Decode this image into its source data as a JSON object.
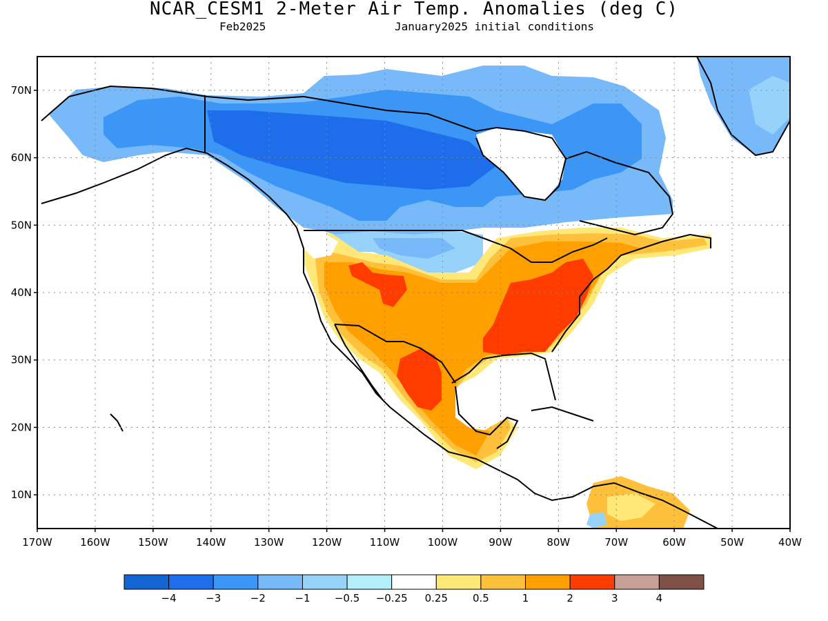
{
  "title": "NCAR_CESM1 2-Meter Air Temp. Anomalies (deg C)",
  "valid_month": "Feb2025",
  "init_text": "January2025 initial conditions",
  "map": {
    "lat_labels": [
      "70N",
      "60N",
      "50N",
      "40N",
      "30N",
      "20N",
      "10N"
    ],
    "lat_values": [
      70,
      60,
      50,
      40,
      30,
      20,
      10
    ],
    "lon_labels": [
      "170W",
      "160W",
      "150W",
      "140W",
      "130W",
      "120W",
      "110W",
      "100W",
      "90W",
      "80W",
      "70W",
      "60W",
      "50W",
      "40W"
    ],
    "lon_values": [
      -170,
      -160,
      -150,
      -140,
      -130,
      -120,
      -110,
      -100,
      -90,
      -80,
      -70,
      -60,
      -50,
      -40
    ],
    "lon_range": [
      -170,
      -40
    ],
    "lat_range": [
      5,
      75
    ],
    "grid": true
  },
  "colorbar": {
    "colors": [
      "#1464d2",
      "#1e6eeb",
      "#3c96f5",
      "#78b9fa",
      "#96d2fa",
      "#b4f0fa",
      "#ffffff",
      "#ffe878",
      "#ffc03c",
      "#ffa000",
      "#ff3c00",
      "#c8a096",
      "#7e5046"
    ],
    "labels": [
      "−4",
      "−3",
      "−2",
      "−1",
      "−0.5",
      "−0.25",
      "0.25",
      "0.5",
      "1",
      "2",
      "3",
      "4"
    ]
  }
}
